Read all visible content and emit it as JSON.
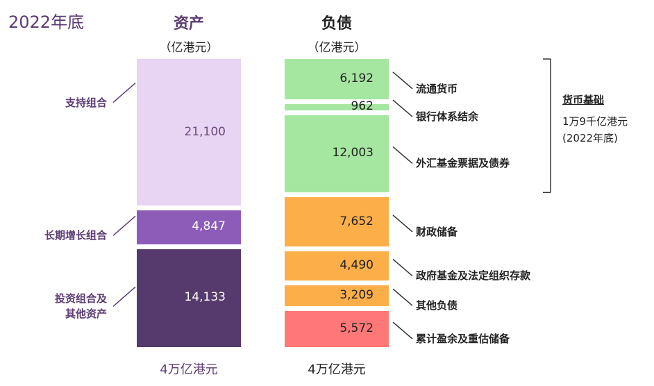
{
  "year_label": "2022年底",
  "assets": {
    "title": "资产",
    "unit": "（亿港元）",
    "footer": "4万亿港元",
    "items": [
      {
        "label": "支持组合",
        "value": 21100,
        "value_text": "21,100",
        "color": "#e8d4f3",
        "text_color": "#6b4b7d"
      },
      {
        "label": "长期增长组合",
        "value": 4847,
        "value_text": "4,847",
        "color": "#8d5cb8",
        "text_color": "#ffffff"
      },
      {
        "label": "投资组合及\n其他资产",
        "value": 14133,
        "value_text": "14,133",
        "color": "#573a6d",
        "text_color": "#ffffff"
      }
    ]
  },
  "liabilities": {
    "title": "负债",
    "unit": "（亿港元）",
    "footer": "4万亿港元",
    "items": [
      {
        "label": "流通货币",
        "value": 6192,
        "value_text": "6,192",
        "color": "#a5e6a0"
      },
      {
        "label": "银行体系结余",
        "value": 962,
        "value_text": "962",
        "color": "#a5e6a0"
      },
      {
        "label": "外汇基金票据及债券",
        "value": 12003,
        "value_text": "12,003",
        "color": "#a5e6a0"
      },
      {
        "label": "财政储备",
        "value": 7652,
        "value_text": "7,652",
        "color": "#fcae49"
      },
      {
        "label": "政府基金及法定组织存款",
        "value": 4490,
        "value_text": "4,490",
        "color": "#fcae49"
      },
      {
        "label": "其他负债",
        "value": 3209,
        "value_text": "3,209",
        "color": "#fcae49"
      },
      {
        "label": "累计盈余及重估储备",
        "value": 5572,
        "value_text": "5,572",
        "color": "#ff7878"
      }
    ]
  },
  "monetary_base": {
    "title": "货币基础",
    "value_line": "1万9千亿港元",
    "date_line": "(2022年底)"
  },
  "chart_data": {
    "type": "bar",
    "title": "",
    "categories": [
      "资产",
      "负债"
    ],
    "stacked": true,
    "units": "亿港元",
    "series": [
      {
        "name": "支持组合",
        "category": "资产",
        "value": 21100
      },
      {
        "name": "长期增长组合",
        "category": "资产",
        "value": 4847
      },
      {
        "name": "投资组合及其他资产",
        "category": "资产",
        "value": 14133
      },
      {
        "name": "流通货币",
        "category": "负债",
        "value": 6192
      },
      {
        "name": "银行体系结余",
        "category": "负债",
        "value": 962
      },
      {
        "name": "外汇基金票据及债券",
        "category": "负债",
        "value": 12003
      },
      {
        "name": "财政储备",
        "category": "负债",
        "value": 7652
      },
      {
        "name": "政府基金及法定组织存款",
        "category": "负债",
        "value": 4490
      },
      {
        "name": "其他负债",
        "category": "负债",
        "value": 3209
      },
      {
        "name": "累计盈余及重估储备",
        "category": "负债",
        "value": 5572
      }
    ]
  }
}
